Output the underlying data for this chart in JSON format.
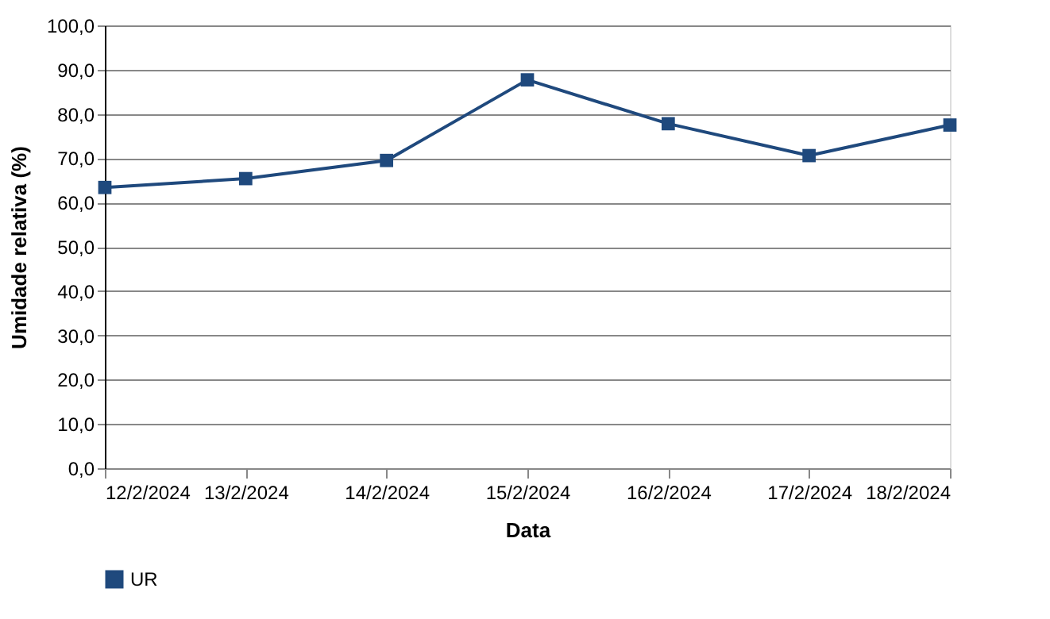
{
  "chart_data": {
    "type": "line",
    "xlabel": "Data",
    "ylabel": "Umidade relativa (%)",
    "categories": [
      "12/2/2024",
      "13/2/2024",
      "14/2/2024",
      "15/2/2024",
      "16/2/2024",
      "17/2/2024",
      "18/2/2024"
    ],
    "series": [
      {
        "name": "UR",
        "color": "#1f497d",
        "values": [
          63.4,
          65.4,
          69.5,
          87.7,
          77.8,
          70.6,
          77.5
        ]
      }
    ],
    "ylim": [
      0,
      100
    ],
    "yticks": [
      {
        "value": 0,
        "label": "0,0"
      },
      {
        "value": 10,
        "label": "10,0"
      },
      {
        "value": 20,
        "label": "20,0"
      },
      {
        "value": 30,
        "label": "30,0"
      },
      {
        "value": 40,
        "label": "40,0"
      },
      {
        "value": 50,
        "label": "50,0"
      },
      {
        "value": 60,
        "label": "60,0"
      },
      {
        "value": 70,
        "label": "70,0"
      },
      {
        "value": 80,
        "label": "80,0"
      },
      {
        "value": 90,
        "label": "90,0"
      },
      {
        "value": 100,
        "label": "100,0"
      }
    ],
    "grid": "y",
    "legend": "bottom",
    "marker": "square",
    "line_style": "solid"
  }
}
